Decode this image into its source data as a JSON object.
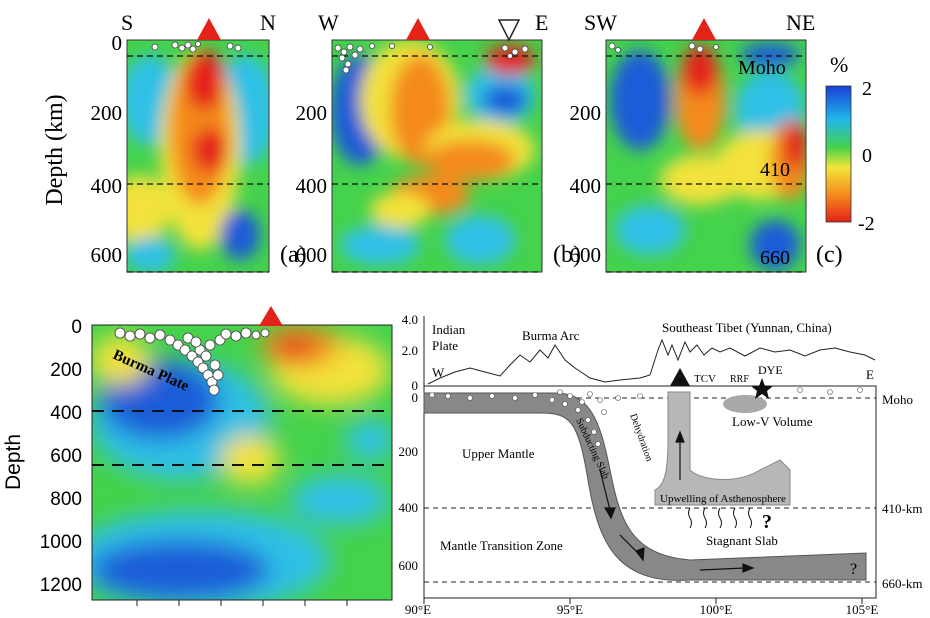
{
  "top_panels": {
    "ylabel": "Depth (km)",
    "yticks": [
      "0",
      "200",
      "400",
      "600"
    ],
    "panels": [
      {
        "id": "a",
        "label": "(a)",
        "left": "S",
        "right": "N"
      },
      {
        "id": "b",
        "label": "(b)",
        "left": "W",
        "right": "E"
      },
      {
        "id": "c",
        "label": "(c)",
        "left": "SW",
        "right": "NE"
      }
    ],
    "annotations": {
      "moho": "Moho",
      "d410": "410",
      "d660": "660"
    },
    "colorbar": {
      "unit": "%",
      "ticks": [
        "2",
        "0",
        "-2"
      ]
    }
  },
  "bottom_left": {
    "ylabel": "Depth",
    "yticks": [
      "0",
      "200",
      "400",
      "600",
      "800",
      "1000",
      "1200"
    ],
    "slab_label": "Burma Plate"
  },
  "bottom_right": {
    "topo_ticks": [
      "4.0",
      "2.0",
      "0"
    ],
    "depth_ticks": [
      "200",
      "400",
      "600"
    ],
    "zero_label": "0",
    "x_ticks": [
      "90°E",
      "95°E",
      "100°E",
      "105°E"
    ],
    "labels": {
      "indian_plate_1": "Indian",
      "indian_plate_2": "Plate",
      "burma_arc": "Burma Arc",
      "se_tibet": "Southeast Tibet (Yunnan, China)",
      "w": "W",
      "e": "E",
      "tcv": "TCV",
      "rrf": "RRF",
      "dye": "DYE",
      "moho": "Moho",
      "low_v": "Low-V Volume",
      "upper_mantle": "Upper Mantle",
      "subducting_slab": "Subducting Slab",
      "dehydration": "Dehydration",
      "upwelling": "Upwelling of Asthenosphere",
      "mtz": "Mantle Transition Zone",
      "stagnant": "Stagnant Slab",
      "k410": "410-km",
      "k660": "660-km",
      "q1": "?",
      "q2": "?"
    }
  },
  "colors": {
    "blue": "#1e5bd8",
    "cyan": "#2fc0e6",
    "green": "#43d24a",
    "yellow": "#f2e23a",
    "orange": "#f48a1e",
    "red": "#e4201a",
    "volcano": "#e32219",
    "slab": "#888888",
    "upwell": "#b7b7b7"
  }
}
